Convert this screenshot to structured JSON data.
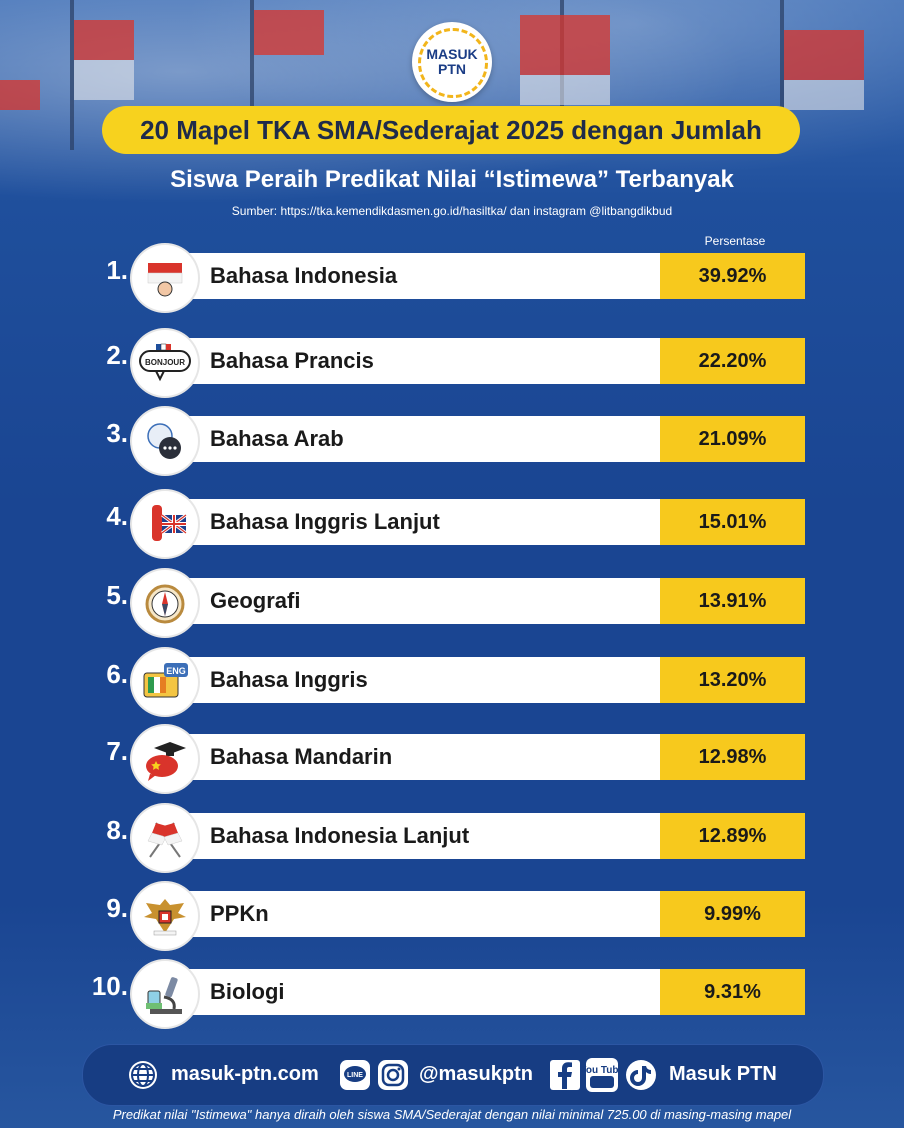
{
  "logo": {
    "line1": "MASUK",
    "line2": "PTN"
  },
  "title": "20 Mapel TKA SMA/Sederajat 2025 dengan Jumlah",
  "subtitle": "Siswa Peraih Predikat Nilai “Istimewa” Terbanyak",
  "source": "Sumber: https://tka.kemendikdasmen.go.id/hasiltka/ dan instagram @litbangdikbud",
  "column_header": "Persentase",
  "rows": [
    {
      "rank": "1.",
      "name": "Bahasa Indonesia",
      "percent": "39.92%",
      "icon": "indonesia-flag-icon"
    },
    {
      "rank": "2.",
      "name": "Bahasa Prancis",
      "percent": "22.20%",
      "icon": "bonjour-speech-icon",
      "icon_text": "BONJOUR"
    },
    {
      "rank": "3.",
      "name": "Bahasa Arab",
      "percent": "21.09%",
      "icon": "arabic-speech-icon"
    },
    {
      "rank": "4.",
      "name": "Bahasa Inggris Lanjut",
      "percent": "15.01%",
      "icon": "uk-flag-icon"
    },
    {
      "rank": "5.",
      "name": "Geografi",
      "percent": "13.91%",
      "icon": "compass-icon"
    },
    {
      "rank": "6.",
      "name": "Bahasa Inggris",
      "percent": "13.20%",
      "icon": "eng-book-icon",
      "icon_text": "ENG"
    },
    {
      "rank": "7.",
      "name": "Bahasa Mandarin",
      "percent": "12.98%",
      "icon": "china-chat-icon"
    },
    {
      "rank": "8.",
      "name": "Bahasa Indonesia Lanjut",
      "percent": "12.89%",
      "icon": "crossed-flags-icon"
    },
    {
      "rank": "9.",
      "name": "PPKn",
      "percent": "9.99%",
      "icon": "garuda-icon"
    },
    {
      "rank": "10.",
      "name": "Biologi",
      "percent": "9.31%",
      "icon": "microscope-icon"
    }
  ],
  "footer": {
    "website": "masuk-ptn.com",
    "handle": "@masukptn",
    "brand": "Masuk PTN",
    "line_label": "LINE",
    "youtube_label": "You Tube"
  },
  "note": "Predikat nilai \"Istimewa\" hanya diraih oleh siswa SMA/Sederajat dengan nilai minimal 725.00 di masing-masing mapel",
  "colors": {
    "accent": "#f7c91d",
    "background": "#1a4592",
    "text_dark": "#1a1a1a"
  }
}
